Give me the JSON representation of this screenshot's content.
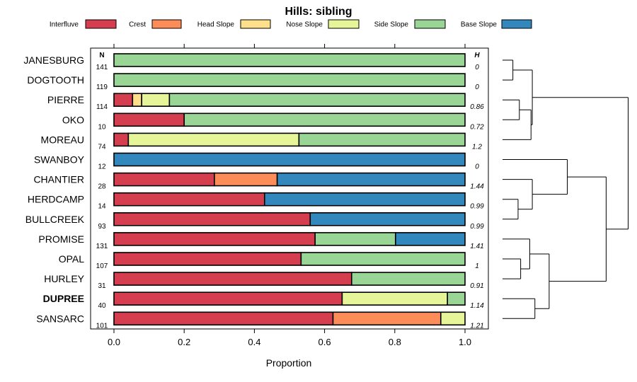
{
  "chart_data": {
    "type": "bar",
    "stacked": true,
    "orientation": "horizontal",
    "title": "Hills: sibling",
    "xlabel": "Proportion",
    "xlim": [
      0,
      1
    ],
    "xticks": [
      "0.0",
      "0.2",
      "0.4",
      "0.6",
      "0.8",
      "1.0"
    ],
    "n_header": "N",
    "h_header": "H",
    "legend": [
      {
        "name": "Interfluve",
        "color": "#D53E4F"
      },
      {
        "name": "Crest",
        "color": "#FC8D59"
      },
      {
        "name": "Head Slope",
        "color": "#FEE08B"
      },
      {
        "name": "Nose Slope",
        "color": "#E6F598"
      },
      {
        "name": "Side Slope",
        "color": "#99D594"
      },
      {
        "name": "Base Slope",
        "color": "#3288BD"
      }
    ],
    "rows": [
      {
        "name": "JANESBURG",
        "n": "141",
        "h": "0",
        "bold": false,
        "values": [
          0,
          0,
          0,
          0,
          1.0,
          0
        ]
      },
      {
        "name": "DOGTOOTH",
        "n": "119",
        "h": "0",
        "bold": false,
        "values": [
          0,
          0,
          0,
          0,
          1.0,
          0
        ]
      },
      {
        "name": "PIERRE",
        "n": "114",
        "h": "0.86",
        "bold": false,
        "values": [
          0.053,
          0,
          0.026,
          0.079,
          0.842,
          0
        ]
      },
      {
        "name": "OKO",
        "n": "10",
        "h": "0.72",
        "bold": false,
        "values": [
          0.2,
          0,
          0,
          0,
          0.8,
          0
        ]
      },
      {
        "name": "MOREAU",
        "n": "74",
        "h": "1.2",
        "bold": false,
        "values": [
          0.041,
          0,
          0,
          0.486,
          0.473,
          0
        ]
      },
      {
        "name": "SWANBOY",
        "n": "12",
        "h": "0",
        "bold": false,
        "values": [
          0,
          0,
          0,
          0,
          0,
          1.0
        ]
      },
      {
        "name": "CHANTIER",
        "n": "28",
        "h": "1.44",
        "bold": false,
        "values": [
          0.286,
          0.179,
          0,
          0,
          0,
          0.535
        ]
      },
      {
        "name": "HERDCAMP",
        "n": "14",
        "h": "0.99",
        "bold": false,
        "values": [
          0.429,
          0,
          0,
          0,
          0,
          0.571
        ]
      },
      {
        "name": "BULLCREEK",
        "n": "93",
        "h": "0.99",
        "bold": false,
        "values": [
          0.559,
          0,
          0,
          0,
          0,
          0.441
        ]
      },
      {
        "name": "PROMISE",
        "n": "131",
        "h": "1.41",
        "bold": false,
        "values": [
          0.573,
          0,
          0,
          0,
          0.229,
          0.198
        ]
      },
      {
        "name": "OPAL",
        "n": "107",
        "h": "1",
        "bold": false,
        "values": [
          0.533,
          0,
          0,
          0,
          0.467,
          0
        ]
      },
      {
        "name": "HURLEY",
        "n": "31",
        "h": "0.91",
        "bold": false,
        "values": [
          0.677,
          0,
          0,
          0,
          0.323,
          0
        ]
      },
      {
        "name": "DUPREE",
        "n": "40",
        "h": "1.14",
        "bold": true,
        "values": [
          0.65,
          0,
          0,
          0.3,
          0.05,
          0
        ]
      },
      {
        "name": "SANSARC",
        "n": "101",
        "h": "1.21",
        "bold": false,
        "values": [
          0.624,
          0.307,
          0,
          0.069,
          0,
          0
        ]
      }
    ],
    "dendrogram": {
      "leaves": [
        "JANESBURG",
        "DOGTOOTH",
        "PIERRE",
        "OKO",
        "MOREAU",
        "SWANBOY",
        "CHANTIER",
        "HERDCAMP",
        "BULLCREEK",
        "PROMISE",
        "OPAL",
        "HURLEY",
        "DUPREE",
        "SANSARC"
      ],
      "merges": [
        {
          "a": "JANESBURG",
          "b": "DOGTOOTH",
          "height": 0.08
        },
        {
          "a": "PIERRE",
          "b": "OKO",
          "height": 0.13
        },
        {
          "a": "c1",
          "b": "MOREAU",
          "height": 0.22
        },
        {
          "a": "c0",
          "b": "c2",
          "height": 0.23
        },
        {
          "a": "HERDCAMP",
          "b": "BULLCREEK",
          "height": 0.12
        },
        {
          "a": "CHANTIER",
          "b": "c4",
          "height": 0.23
        },
        {
          "a": "SWANBOY",
          "b": "c5",
          "height": 0.5
        },
        {
          "a": "OPAL",
          "b": "HURLEY",
          "height": 0.14
        },
        {
          "a": "PROMISE",
          "b": "c7",
          "height": 0.21
        },
        {
          "a": "DUPREE",
          "b": "SANSARC",
          "height": 0.25
        },
        {
          "a": "c8",
          "b": "c9",
          "height": 0.36
        },
        {
          "a": "c6",
          "b": "c10",
          "height": 0.8
        },
        {
          "a": "c3",
          "b": "c11",
          "height": 0.97
        }
      ]
    }
  }
}
